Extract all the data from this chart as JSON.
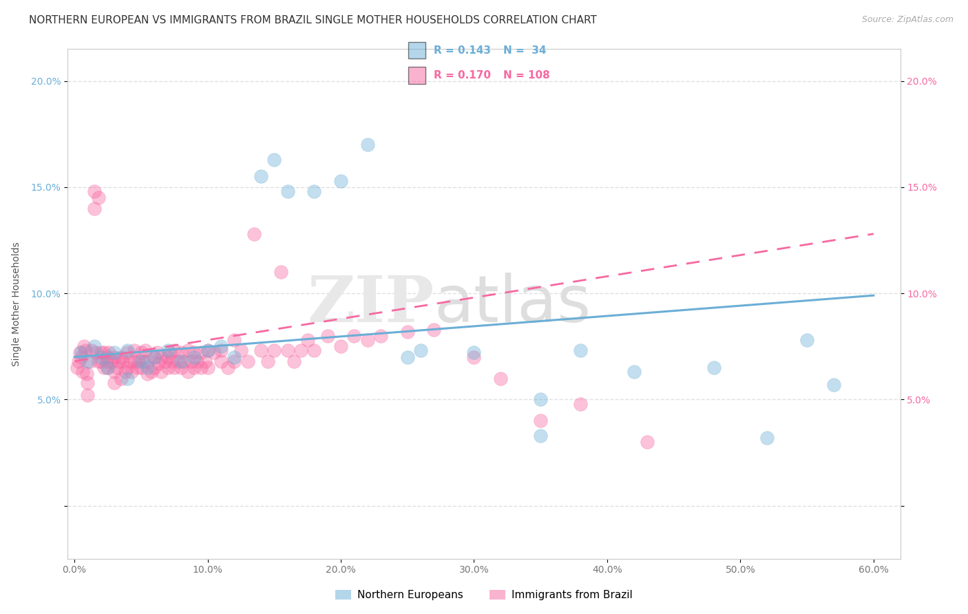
{
  "title": "NORTHERN EUROPEAN VS IMMIGRANTS FROM BRAZIL SINGLE MOTHER HOUSEHOLDS CORRELATION CHART",
  "source": "Source: ZipAtlas.com",
  "ylabel": "Single Mother Households",
  "xlim": [
    -0.005,
    0.62
  ],
  "ylim": [
    -0.025,
    0.215
  ],
  "xticks": [
    0.0,
    0.1,
    0.2,
    0.3,
    0.4,
    0.5,
    0.6
  ],
  "xticklabels": [
    "0.0%",
    "10.0%",
    "20.0%",
    "30.0%",
    "40.0%",
    "50.0%",
    "60.0%"
  ],
  "yticks": [
    0.0,
    0.05,
    0.1,
    0.15,
    0.2
  ],
  "yticklabels": [
    "",
    "5.0%",
    "10.0%",
    "15.0%",
    "20.0%"
  ],
  "group1_label": "Northern Europeans",
  "group1_color": "#6baed6",
  "group1_R": 0.143,
  "group1_N": 34,
  "group1_x": [
    0.005,
    0.01,
    0.015,
    0.02,
    0.025,
    0.03,
    0.04,
    0.04,
    0.05,
    0.055,
    0.06,
    0.07,
    0.08,
    0.09,
    0.1,
    0.11,
    0.12,
    0.14,
    0.15,
    0.16,
    0.18,
    0.2,
    0.22,
    0.26,
    0.3,
    0.35,
    0.38,
    0.42,
    0.48,
    0.52,
    0.55,
    0.57,
    0.35,
    0.25
  ],
  "group1_y": [
    0.072,
    0.068,
    0.075,
    0.07,
    0.065,
    0.072,
    0.073,
    0.06,
    0.068,
    0.065,
    0.07,
    0.073,
    0.068,
    0.07,
    0.073,
    0.075,
    0.07,
    0.155,
    0.163,
    0.148,
    0.148,
    0.153,
    0.17,
    0.073,
    0.072,
    0.033,
    0.073,
    0.063,
    0.065,
    0.032,
    0.078,
    0.057,
    0.05,
    0.07
  ],
  "group2_label": "Immigrants from Brazil",
  "group2_color": "#f768a1",
  "group2_R": 0.17,
  "group2_N": 108,
  "group2_x": [
    0.002,
    0.003,
    0.004,
    0.005,
    0.006,
    0.007,
    0.008,
    0.009,
    0.01,
    0.01,
    0.012,
    0.013,
    0.015,
    0.015,
    0.016,
    0.018,
    0.018,
    0.02,
    0.02,
    0.022,
    0.022,
    0.024,
    0.025,
    0.025,
    0.026,
    0.028,
    0.03,
    0.03,
    0.03,
    0.032,
    0.033,
    0.035,
    0.035,
    0.036,
    0.038,
    0.04,
    0.04,
    0.042,
    0.043,
    0.045,
    0.045,
    0.047,
    0.048,
    0.05,
    0.05,
    0.052,
    0.053,
    0.055,
    0.055,
    0.058,
    0.06,
    0.06,
    0.062,
    0.063,
    0.065,
    0.065,
    0.068,
    0.07,
    0.07,
    0.072,
    0.073,
    0.075,
    0.075,
    0.078,
    0.08,
    0.08,
    0.082,
    0.085,
    0.085,
    0.088,
    0.09,
    0.09,
    0.092,
    0.095,
    0.095,
    0.098,
    0.1,
    0.1,
    0.105,
    0.11,
    0.11,
    0.115,
    0.12,
    0.12,
    0.125,
    0.13,
    0.135,
    0.14,
    0.145,
    0.15,
    0.155,
    0.16,
    0.165,
    0.17,
    0.175,
    0.18,
    0.19,
    0.2,
    0.21,
    0.22,
    0.23,
    0.25,
    0.27,
    0.3,
    0.32,
    0.35,
    0.38,
    0.43
  ],
  "group2_y": [
    0.065,
    0.068,
    0.072,
    0.07,
    0.063,
    0.075,
    0.073,
    0.062,
    0.058,
    0.052,
    0.068,
    0.073,
    0.14,
    0.148,
    0.072,
    0.145,
    0.068,
    0.072,
    0.068,
    0.065,
    0.072,
    0.068,
    0.07,
    0.065,
    0.072,
    0.068,
    0.07,
    0.063,
    0.058,
    0.065,
    0.068,
    0.07,
    0.06,
    0.068,
    0.063,
    0.072,
    0.065,
    0.068,
    0.063,
    0.068,
    0.073,
    0.065,
    0.068,
    0.072,
    0.065,
    0.068,
    0.073,
    0.062,
    0.068,
    0.063,
    0.07,
    0.065,
    0.072,
    0.067,
    0.07,
    0.063,
    0.068,
    0.07,
    0.065,
    0.072,
    0.068,
    0.073,
    0.065,
    0.068,
    0.072,
    0.065,
    0.068,
    0.073,
    0.063,
    0.068,
    0.072,
    0.065,
    0.068,
    0.072,
    0.065,
    0.068,
    0.073,
    0.065,
    0.072,
    0.068,
    0.073,
    0.065,
    0.078,
    0.068,
    0.073,
    0.068,
    0.128,
    0.073,
    0.068,
    0.073,
    0.11,
    0.073,
    0.068,
    0.073,
    0.078,
    0.073,
    0.08,
    0.075,
    0.08,
    0.078,
    0.08,
    0.082,
    0.083,
    0.07,
    0.06,
    0.04,
    0.048,
    0.03
  ],
  "watermark_zip": "ZIP",
  "watermark_atlas": "atlas",
  "background_color": "#ffffff",
  "grid_color": "#e0e0e0",
  "title_color": "#333333",
  "tick_color": "#777777",
  "blue_tick_color": "#6baed6",
  "pink_tick_color": "#f768a1",
  "title_fontsize": 11,
  "axis_fontsize": 10,
  "tick_fontsize": 10,
  "legend_fontsize": 11,
  "trendline1_start_y": 0.07,
  "trendline1_end_y": 0.099,
  "trendline2_start_y": 0.068,
  "trendline2_end_y": 0.128
}
